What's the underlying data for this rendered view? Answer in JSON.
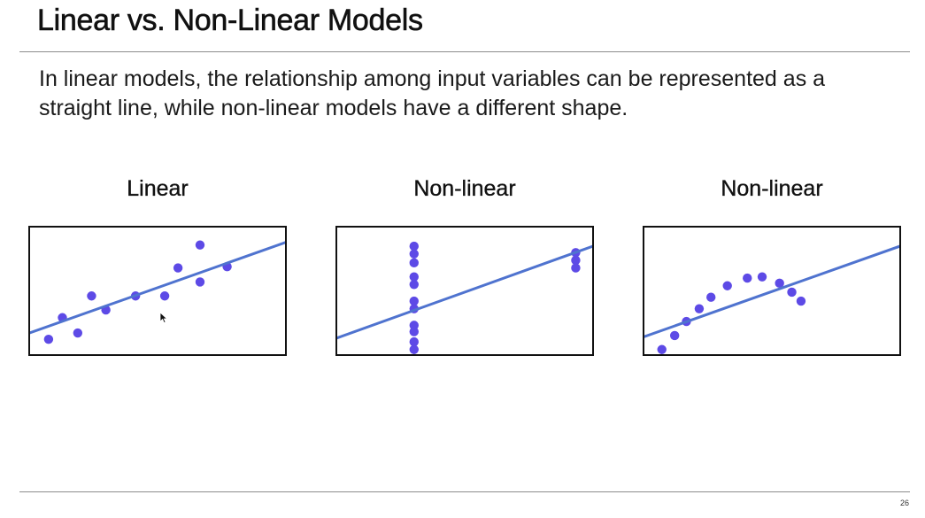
{
  "slide": {
    "title": "Linear vs. Non-Linear Models",
    "body": "In linear models, the relationship among input variables can be represented as a straight line, while non-linear models have a different shape.",
    "page_number": "26"
  },
  "colors": {
    "point": "#5d4ae6",
    "line": "#4f73cf",
    "frame": "#111111"
  },
  "panels": [
    {
      "title": "Linear",
      "line": [
        [
          0,
          0.17
        ],
        [
          1,
          0.88
        ]
      ],
      "points": [
        [
          0.074,
          0.12
        ],
        [
          0.128,
          0.29
        ],
        [
          0.188,
          0.17
        ],
        [
          0.242,
          0.46
        ],
        [
          0.298,
          0.35
        ],
        [
          0.414,
          0.46
        ],
        [
          0.528,
          0.46
        ],
        [
          0.58,
          0.68
        ],
        [
          0.666,
          0.57
        ],
        [
          0.666,
          0.86
        ],
        [
          0.772,
          0.69
        ]
      ]
    },
    {
      "title": "Non-linear",
      "line": [
        [
          0,
          0.13
        ],
        [
          1,
          0.85
        ]
      ],
      "points": [
        [
          0.302,
          0.04
        ],
        [
          0.302,
          0.1
        ],
        [
          0.302,
          0.18
        ],
        [
          0.302,
          0.23
        ],
        [
          0.302,
          0.36
        ],
        [
          0.302,
          0.42
        ],
        [
          0.302,
          0.55
        ],
        [
          0.302,
          0.61
        ],
        [
          0.302,
          0.72
        ],
        [
          0.302,
          0.79
        ],
        [
          0.302,
          0.85
        ],
        [
          0.934,
          0.68
        ],
        [
          0.934,
          0.74
        ],
        [
          0.934,
          0.8
        ]
      ]
    },
    {
      "title": "Non-linear",
      "line": [
        [
          0,
          0.14
        ],
        [
          1,
          0.85
        ]
      ],
      "points": [
        [
          0.07,
          0.04
        ],
        [
          0.12,
          0.15
        ],
        [
          0.166,
          0.26
        ],
        [
          0.216,
          0.36
        ],
        [
          0.262,
          0.45
        ],
        [
          0.326,
          0.54
        ],
        [
          0.404,
          0.6
        ],
        [
          0.462,
          0.61
        ],
        [
          0.53,
          0.56
        ],
        [
          0.578,
          0.49
        ],
        [
          0.614,
          0.42
        ]
      ]
    }
  ]
}
